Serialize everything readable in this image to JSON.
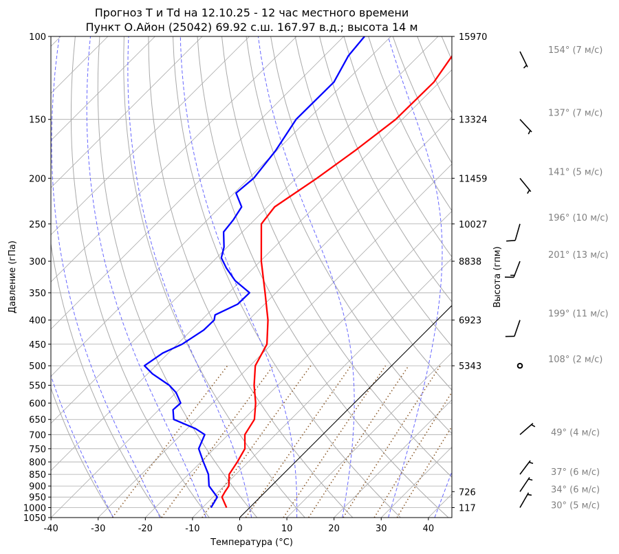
{
  "chart_data": {
    "type": "line",
    "subtype": "skew-t log-p",
    "title": [
      "Прогноз T и Td на 12.10.25 - 12 час местного времени",
      "Пункт О.Айон (25042) 69.92 с.ш. 167.97 в.д.; высота 14 м"
    ],
    "xlabel": "Температура (°C)",
    "ylabel": "Давление (гПа)",
    "ylabel_right": "Высота (гпм)",
    "xlim": [
      -40,
      45
    ],
    "ylim": [
      1050,
      100
    ],
    "grid": true,
    "x_ticks": [
      "-40",
      "-30",
      "-20",
      "-10",
      "0",
      "10",
      "20",
      "30",
      "40"
    ],
    "y_ticks": [
      "100",
      "150",
      "200",
      "250",
      "300",
      "350",
      "400",
      "450",
      "500",
      "550",
      "600",
      "650",
      "700",
      "750",
      "800",
      "850",
      "900",
      "950",
      "1000",
      "1050"
    ],
    "height_ticks": [
      {
        "p": 100,
        "label": "15970"
      },
      {
        "p": 150,
        "label": "13324"
      },
      {
        "p": 200,
        "label": "11459"
      },
      {
        "p": 250,
        "label": "10027"
      },
      {
        "p": 300,
        "label": "8838"
      },
      {
        "p": 400,
        "label": "6923"
      },
      {
        "p": 500,
        "label": "5343"
      },
      {
        "p": 925,
        "label": "726"
      },
      {
        "p": 1000,
        "label": "117"
      }
    ],
    "series": [
      {
        "name": "T",
        "color": "#ff0000",
        "pressure": [
          1000,
          950,
          925,
          900,
          850,
          800,
          750,
          700,
          650,
          600,
          550,
          500,
          450,
          400,
          350,
          300,
          250,
          230,
          200,
          175,
          150,
          125,
          110,
          100
        ],
        "values": [
          -4.9,
          -8.1,
          -8.6,
          -9.0,
          -11.4,
          -12.3,
          -13.5,
          -16.5,
          -17.7,
          -20.9,
          -25.0,
          -28.9,
          -31.0,
          -35.9,
          -42.3,
          -49.8,
          -57.7,
          -58.5,
          -55.6,
          -53.4,
          -51.4,
          -51.2,
          -52.9,
          -54.0
        ]
      },
      {
        "name": "Td",
        "color": "#0000ff",
        "pressure": [
          1000,
          950,
          900,
          850,
          800,
          750,
          700,
          680,
          650,
          620,
          600,
          570,
          550,
          520,
          500,
          470,
          450,
          420,
          400,
          390,
          370,
          350,
          330,
          310,
          295,
          280,
          260,
          245,
          230,
          215,
          200,
          175,
          150,
          125,
          110,
          100
        ],
        "values": [
          -8.2,
          -9.1,
          -13.2,
          -15.8,
          -19.5,
          -23.3,
          -25.0,
          -28.2,
          -34.8,
          -37.0,
          -36.8,
          -40.0,
          -43.0,
          -49.0,
          -52.4,
          -51.2,
          -49.0,
          -47.4,
          -47.3,
          -48.2,
          -45.7,
          -45.6,
          -51.2,
          -55.8,
          -59.0,
          -60.7,
          -64.0,
          -64.5,
          -65.5,
          -69.6,
          -69.0,
          -70.2,
          -72.5,
          -72.4,
          -74.9,
          -75.6
        ]
      }
    ],
    "highlight_isotherm_c": 0,
    "mixing_ratios_kgkg": [
      0.0004,
      0.001,
      0.002,
      0.004,
      0.007,
      0.01,
      0.016,
      0.024,
      0.032
    ],
    "winds": [
      {
        "p": 100,
        "dir": 154,
        "speed": 7,
        "label": "154° (7 м/с)"
      },
      {
        "p": 150,
        "dir": 137,
        "speed": 7,
        "label": "137° (7 м/с)"
      },
      {
        "p": 200,
        "dir": 141,
        "speed": 5,
        "label": "141° (5 м/с)"
      },
      {
        "p": 250,
        "dir": 196,
        "speed": 10,
        "label": "196° (10 м/с)"
      },
      {
        "p": 300,
        "dir": 201,
        "speed": 13,
        "label": "201° (13 м/с)"
      },
      {
        "p": 400,
        "dir": 199,
        "speed": 11,
        "label": "199° (11 м/с)"
      },
      {
        "p": 500,
        "dir": 108,
        "speed": 2,
        "label": "108° (2 м/с)"
      },
      {
        "p": 700,
        "dir": 49,
        "speed": 4,
        "label": "49° (4 м/с)"
      },
      {
        "p": 850,
        "dir": 37,
        "speed": 6,
        "label": "37° (6 м/с)"
      },
      {
        "p": 925,
        "dir": 34,
        "speed": 6,
        "label": "34° (6 м/с)"
      },
      {
        "p": 1000,
        "dir": 30,
        "speed": 5,
        "label": "30° (5 м/с)"
      }
    ],
    "colors": {
      "grid": "#a9a9a9",
      "moist_adiabat": "#6666ff",
      "mixing_ratio": "#8b5a2b",
      "wind_label": "#808080"
    }
  }
}
